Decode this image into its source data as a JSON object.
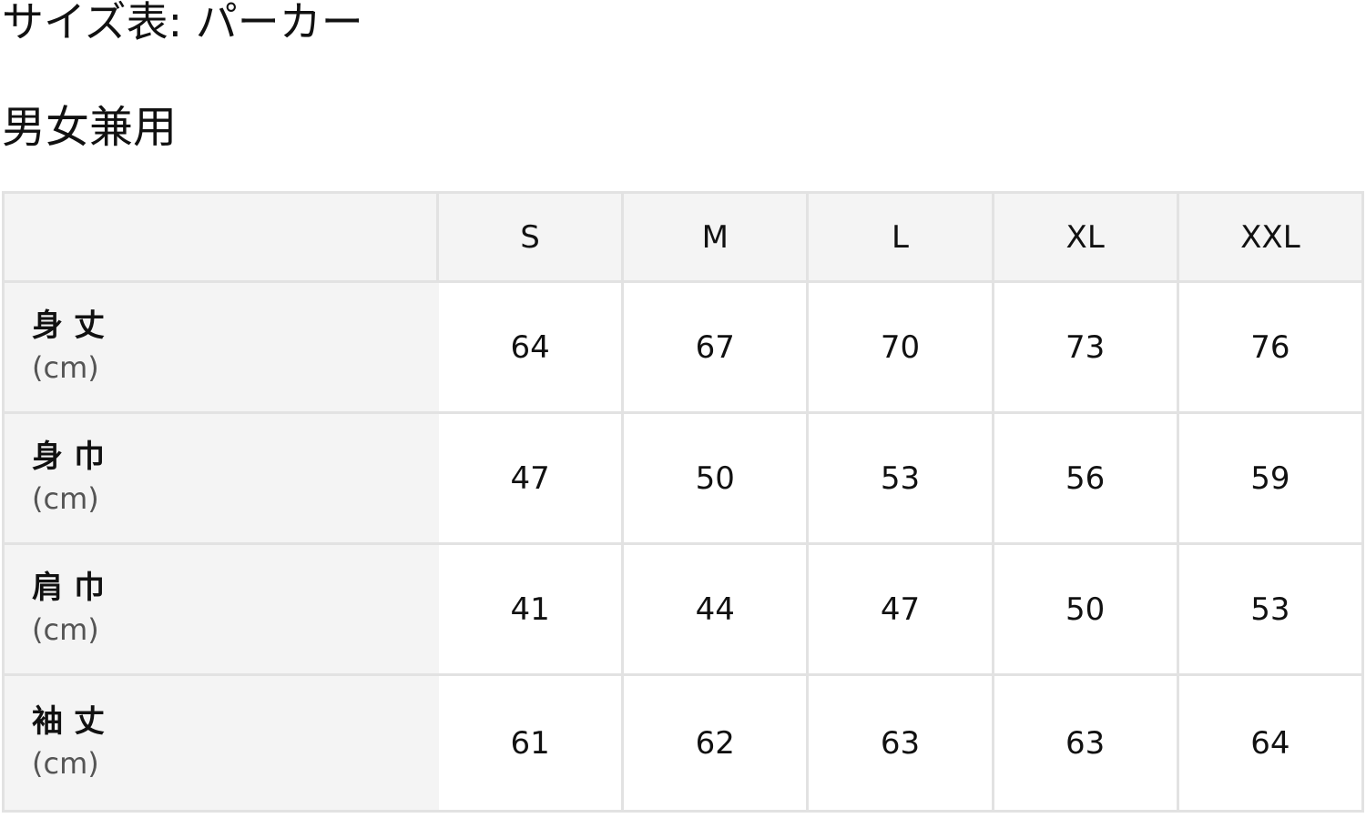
{
  "title": "サイズ表: パーカー",
  "subtitle": "男女兼用",
  "table": {
    "columns": [
      "S",
      "M",
      "L",
      "XL",
      "XXL"
    ],
    "rows": [
      {
        "label": "身丈",
        "unit": "(cm)",
        "values": [
          "64",
          "67",
          "70",
          "73",
          "76"
        ]
      },
      {
        "label": "身巾",
        "unit": "(cm)",
        "values": [
          "47",
          "50",
          "53",
          "56",
          "59"
        ]
      },
      {
        "label": "肩巾",
        "unit": "(cm)",
        "values": [
          "41",
          "44",
          "47",
          "50",
          "53"
        ]
      },
      {
        "label": "袖丈",
        "unit": "(cm)",
        "values": [
          "61",
          "62",
          "63",
          "63",
          "64"
        ]
      }
    ]
  }
}
